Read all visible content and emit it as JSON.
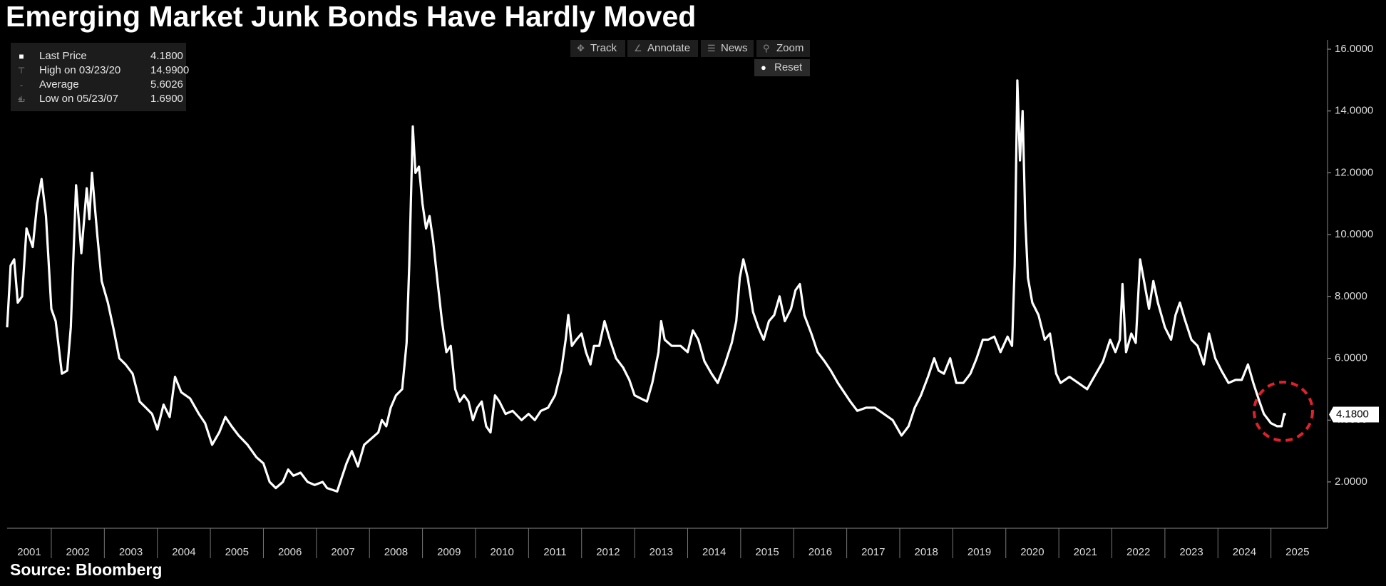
{
  "chart_data": {
    "type": "line",
    "title": "Emerging Market Junk Bonds Have Hardly Moved",
    "source": "Source: Bloomberg",
    "color": "#ffffff",
    "xlim": [
      2001.167,
      2026.067
    ],
    "xticks": [
      2001,
      2002,
      2003,
      2004,
      2005,
      2006,
      2007,
      2008,
      2009,
      2010,
      2011,
      2012,
      2013,
      2014,
      2015,
      2016,
      2017,
      2018,
      2019,
      2020,
      2021,
      2022,
      2023,
      2024,
      2025
    ],
    "ylim": [
      0.5,
      16.3
    ],
    "yticks": [
      {
        "value": 2,
        "label": "2.0000"
      },
      {
        "value": 4,
        "label": "4.0000"
      },
      {
        "value": 6,
        "label": "6.0000"
      },
      {
        "value": 8,
        "label": "8.0000"
      },
      {
        "value": 10,
        "label": "10.0000"
      },
      {
        "value": 12,
        "label": "12.0000"
      },
      {
        "value": 14,
        "label": "14.0000"
      },
      {
        "value": 16,
        "label": "16.0000"
      }
    ],
    "last_price_tag": {
      "value": 4.18,
      "label": "4.1800"
    },
    "stats": [
      {
        "label": "Last Price",
        "value": "4.1800"
      },
      {
        "label": "High on 03/23/20",
        "value": "14.9900"
      },
      {
        "label": "Average",
        "value": "5.6026"
      },
      {
        "label": "Low on 05/23/07",
        "value": "1.6900"
      }
    ],
    "toolbar": [
      "Track",
      "Annotate",
      "News",
      "Zoom",
      "Reset"
    ],
    "x": [
      2001.167,
      2001.233,
      2001.3,
      2001.367,
      2001.45,
      2001.533,
      2001.65,
      2001.733,
      2001.817,
      2001.9,
      2002.0,
      2002.083,
      2002.2,
      2002.3,
      2002.367,
      2002.467,
      2002.567,
      2002.667,
      2002.717,
      2002.767,
      2002.867,
      2002.95,
      2003.067,
      2003.167,
      2003.283,
      2003.4,
      2003.533,
      2003.667,
      2003.783,
      2003.9,
      2004.0,
      2004.117,
      2004.233,
      2004.333,
      2004.45,
      2004.617,
      2004.783,
      2004.9,
      2005.033,
      2005.167,
      2005.283,
      2005.4,
      2005.533,
      2005.7,
      2005.867,
      2006.0,
      2006.117,
      2006.233,
      2006.367,
      2006.467,
      2006.567,
      2006.7,
      2006.833,
      2006.967,
      2007.117,
      2007.2,
      2007.39,
      2007.45,
      2007.567,
      2007.667,
      2007.783,
      2007.9,
      2008.033,
      2008.167,
      2008.233,
      2008.317,
      2008.4,
      2008.5,
      2008.617,
      2008.7,
      2008.75,
      2008.817,
      2008.867,
      2008.933,
      2009.0,
      2009.067,
      2009.133,
      2009.2,
      2009.283,
      2009.367,
      2009.45,
      2009.533,
      2009.617,
      2009.7,
      2009.783,
      2009.867,
      2009.95,
      2010.033,
      2010.117,
      2010.2,
      2010.283,
      2010.367,
      2010.45,
      2010.567,
      2010.7,
      2010.867,
      2011.0,
      2011.117,
      2011.233,
      2011.367,
      2011.5,
      2011.617,
      2011.7,
      2011.75,
      2011.817,
      2011.9,
      2012.0,
      2012.083,
      2012.167,
      2012.233,
      2012.333,
      2012.433,
      2012.533,
      2012.65,
      2012.783,
      2012.9,
      2013.0,
      2013.117,
      2013.233,
      2013.333,
      2013.45,
      2013.5,
      2013.567,
      2013.7,
      2013.867,
      2014.0,
      2014.1,
      2014.2,
      2014.317,
      2014.45,
      2014.567,
      2014.7,
      2014.833,
      2014.917,
      2014.983,
      2015.05,
      2015.133,
      2015.233,
      2015.333,
      2015.433,
      2015.533,
      2015.633,
      2015.733,
      2015.833,
      2015.95,
      2016.033,
      2016.117,
      2016.2,
      2016.333,
      2016.45,
      2016.583,
      2016.7,
      2016.833,
      2016.95,
      2017.067,
      2017.2,
      2017.367,
      2017.533,
      2017.7,
      2017.867,
      2018.033,
      2018.167,
      2018.283,
      2018.4,
      2018.533,
      2018.65,
      2018.733,
      2018.833,
      2018.95,
      2019.067,
      2019.2,
      2019.333,
      2019.45,
      2019.567,
      2019.667,
      2019.783,
      2019.9,
      2020.033,
      2020.117,
      2020.167,
      2020.217,
      2020.267,
      2020.317,
      2020.367,
      2020.417,
      2020.5,
      2020.617,
      2020.733,
      2020.833,
      2020.95,
      2021.033,
      2021.2,
      2021.367,
      2021.533,
      2021.7,
      2021.833,
      2021.967,
      2022.067,
      2022.15,
      2022.2,
      2022.267,
      2022.367,
      2022.45,
      2022.533,
      2022.617,
      2022.7,
      2022.783,
      2022.867,
      2023.0,
      2023.117,
      2023.2,
      2023.283,
      2023.367,
      2023.5,
      2023.617,
      2023.733,
      2023.833,
      2023.95,
      2024.067,
      2024.2,
      2024.333,
      2024.45,
      2024.567,
      2024.667,
      2024.783,
      2024.867,
      2025.0,
      2025.117,
      2025.2,
      2025.25,
      2025.283
    ],
    "values": [
      7.0,
      9.0,
      9.2,
      7.8,
      8.0,
      10.2,
      9.6,
      11.0,
      11.8,
      10.6,
      7.6,
      7.2,
      5.5,
      5.6,
      7.0,
      11.6,
      9.4,
      11.5,
      10.5,
      12.0,
      10.0,
      8.5,
      7.8,
      7.0,
      6.0,
      5.8,
      5.5,
      4.6,
      4.4,
      4.2,
      3.7,
      4.5,
      4.1,
      5.4,
      4.9,
      4.7,
      4.2,
      3.9,
      3.2,
      3.6,
      4.1,
      3.8,
      3.5,
      3.2,
      2.8,
      2.6,
      2.0,
      1.8,
      2.0,
      2.4,
      2.2,
      2.3,
      2.0,
      1.9,
      2.0,
      1.8,
      1.69,
      2.0,
      2.6,
      3.0,
      2.5,
      3.2,
      3.4,
      3.6,
      4.0,
      3.8,
      4.4,
      4.8,
      5.0,
      6.5,
      9.0,
      13.5,
      12.0,
      12.2,
      11.0,
      10.2,
      10.6,
      9.8,
      8.5,
      7.2,
      6.2,
      6.4,
      5.0,
      4.6,
      4.8,
      4.6,
      4.0,
      4.4,
      4.6,
      3.8,
      3.6,
      4.8,
      4.6,
      4.2,
      4.3,
      4.0,
      4.2,
      4.0,
      4.3,
      4.4,
      4.8,
      5.6,
      6.6,
      7.4,
      6.4,
      6.6,
      6.8,
      6.2,
      5.8,
      6.4,
      6.4,
      7.2,
      6.6,
      6.0,
      5.7,
      5.3,
      4.8,
      4.7,
      4.6,
      5.2,
      6.2,
      7.2,
      6.6,
      6.4,
      6.4,
      6.2,
      6.9,
      6.6,
      5.9,
      5.5,
      5.2,
      5.8,
      6.5,
      7.2,
      8.6,
      9.2,
      8.6,
      7.5,
      7.0,
      6.6,
      7.2,
      7.4,
      8.0,
      7.2,
      7.6,
      8.2,
      8.4,
      7.4,
      6.8,
      6.2,
      5.9,
      5.6,
      5.2,
      4.9,
      4.6,
      4.3,
      4.4,
      4.4,
      4.2,
      4.0,
      3.5,
      3.8,
      4.4,
      4.8,
      5.4,
      6.0,
      5.6,
      5.5,
      6.0,
      5.2,
      5.2,
      5.5,
      6.0,
      6.6,
      6.6,
      6.7,
      6.2,
      6.7,
      6.4,
      9.0,
      14.99,
      12.4,
      14.0,
      10.5,
      8.6,
      7.8,
      7.4,
      6.6,
      6.8,
      5.5,
      5.2,
      5.4,
      5.2,
      5.0,
      5.5,
      5.9,
      6.6,
      6.2,
      6.6,
      8.4,
      6.2,
      6.8,
      6.5,
      9.2,
      8.4,
      7.6,
      8.5,
      7.8,
      7.0,
      6.6,
      7.4,
      7.8,
      7.3,
      6.6,
      6.4,
      5.8,
      6.8,
      6.0,
      5.6,
      5.2,
      5.3,
      5.3,
      5.8,
      5.2,
      4.6,
      4.2,
      3.9,
      3.8,
      3.8,
      4.2,
      4.18
    ]
  }
}
